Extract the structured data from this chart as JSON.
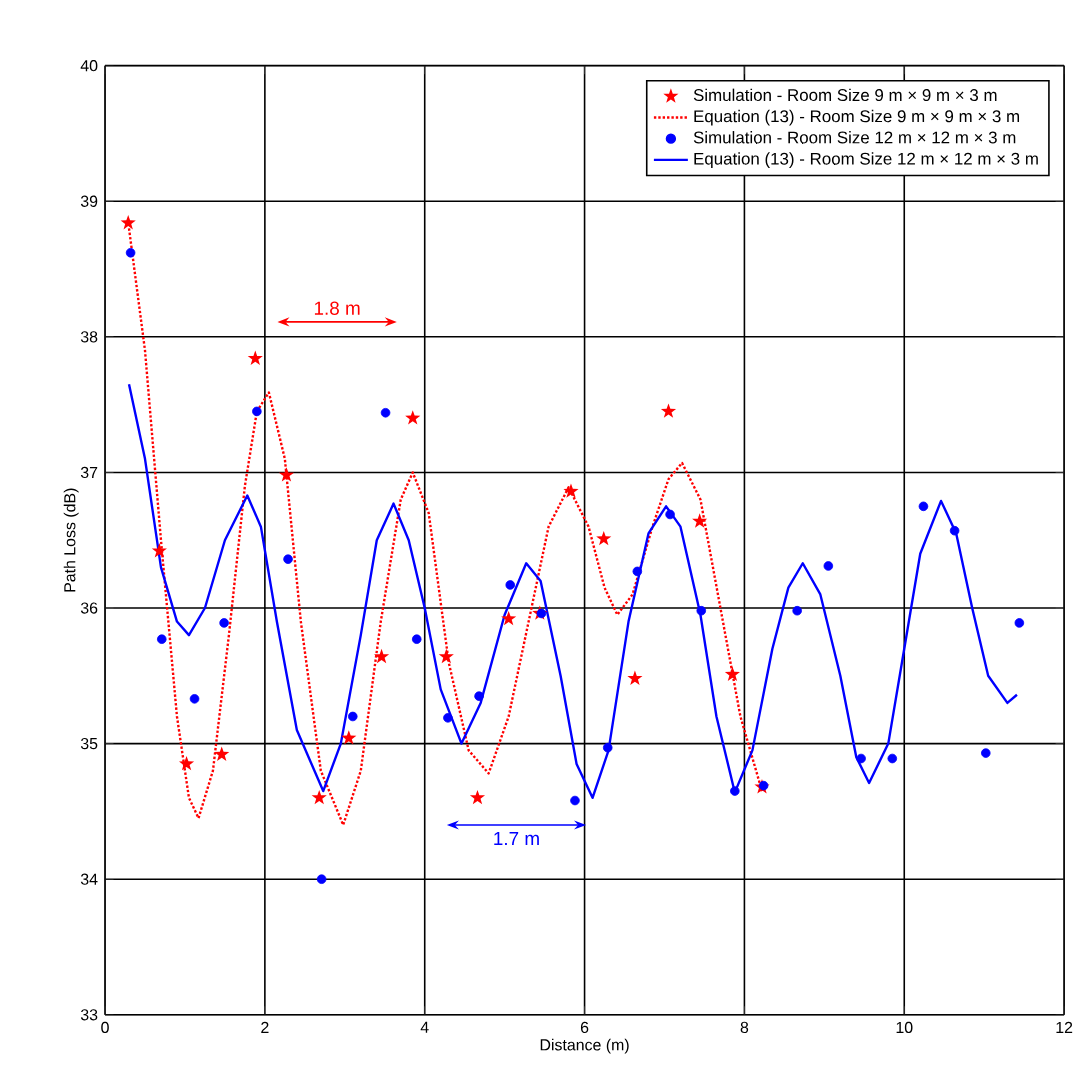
{
  "chart_data": {
    "type": "scatter",
    "xlabel": "Distance (m)",
    "ylabel": "Path Loss (dB)",
    "xlim": [
      0,
      12
    ],
    "ylim": [
      33,
      40
    ],
    "xticks": [
      0,
      2,
      4,
      6,
      8,
      10,
      12
    ],
    "yticks": [
      33,
      34,
      35,
      36,
      37,
      38,
      39,
      40
    ],
    "grid": true,
    "legend": "top right",
    "annotations": [
      "1.8 m",
      "1.7 m"
    ],
    "series": [
      {
        "name": "Simulation - Room Size 9 m × 9 m × 3 m",
        "marker": "star",
        "color": "#ff0000",
        "x": [
          0.29,
          0.68,
          1.02,
          1.46,
          1.88,
          2.27,
          2.68,
          3.05,
          3.46,
          3.85,
          4.27,
          4.66,
          5.05,
          5.44,
          5.83,
          6.24,
          6.63,
          7.05,
          7.44,
          7.85,
          8.22
        ],
        "values": [
          38.84,
          36.42,
          34.85,
          34.92,
          37.84,
          36.98,
          34.6,
          35.04,
          35.64,
          37.4,
          35.64,
          34.6,
          35.92,
          35.96,
          36.86,
          36.51,
          35.48,
          37.45,
          36.64,
          35.51,
          34.68
        ]
      },
      {
        "name": "Equation (13) - Room Size 9 m × 9 m × 3 m",
        "type": "line",
        "marker": "none",
        "line_style": "dotted",
        "color": "#ff0000",
        "x": [
          0.3,
          0.5,
          0.7,
          0.9,
          1.05,
          1.17,
          1.35,
          1.55,
          1.75,
          1.9,
          2.05,
          2.25,
          2.45,
          2.7,
          2.98,
          3.2,
          3.45,
          3.7,
          3.85,
          4.05,
          4.3,
          4.55,
          4.8,
          5.05,
          5.3,
          5.55,
          5.8,
          6.05,
          6.25,
          6.41,
          6.6,
          6.85,
          7.05,
          7.22,
          7.45,
          7.7,
          7.95,
          8.22
        ],
        "values": [
          38.8,
          37.9,
          36.5,
          35.2,
          34.6,
          34.45,
          34.8,
          35.8,
          36.9,
          37.45,
          37.59,
          37.1,
          35.9,
          34.8,
          34.4,
          34.8,
          35.9,
          36.8,
          37.0,
          36.7,
          35.6,
          34.95,
          34.78,
          35.2,
          35.9,
          36.6,
          36.89,
          36.6,
          36.15,
          35.95,
          36.1,
          36.6,
          36.95,
          37.07,
          36.8,
          36.0,
          35.2,
          34.65
        ]
      },
      {
        "name": "Simulation - Room Size 12 m × 12 m × 3 m",
        "marker": "circle",
        "color": "#0000ff",
        "x": [
          0.32,
          0.71,
          1.12,
          1.49,
          1.9,
          2.29,
          2.71,
          3.1,
          3.51,
          3.9,
          4.29,
          4.68,
          5.07,
          5.46,
          5.88,
          6.29,
          6.66,
          7.07,
          7.46,
          7.88,
          8.24,
          8.66,
          9.05,
          9.46,
          9.85,
          10.24,
          10.63,
          11.02,
          11.44
        ],
        "values": [
          38.62,
          35.77,
          35.33,
          35.89,
          37.45,
          36.36,
          34.0,
          35.2,
          37.44,
          35.77,
          35.19,
          35.35,
          36.17,
          35.96,
          34.58,
          34.97,
          36.27,
          36.69,
          35.98,
          34.65,
          34.69,
          35.98,
          36.31,
          34.89,
          34.89,
          36.75,
          36.57,
          34.93,
          35.89
        ]
      },
      {
        "name": "Equation (13) - Room Size 12 m × 12 m × 3 m",
        "type": "line",
        "marker": "none",
        "line_style": "solid",
        "color": "#0000ff",
        "x": [
          0.3,
          0.5,
          0.7,
          0.9,
          1.05,
          1.25,
          1.5,
          1.78,
          1.95,
          2.15,
          2.4,
          2.73,
          2.95,
          3.2,
          3.4,
          3.61,
          3.8,
          4.0,
          4.2,
          4.46,
          4.7,
          5.0,
          5.27,
          5.45,
          5.7,
          5.9,
          6.1,
          6.3,
          6.55,
          6.8,
          7.02,
          7.2,
          7.45,
          7.65,
          7.88,
          8.1,
          8.35,
          8.55,
          8.73,
          8.95,
          9.2,
          9.4,
          9.56,
          9.8,
          10.0,
          10.2,
          10.46,
          10.65,
          10.85,
          11.05,
          11.29,
          11.41
        ],
        "values": [
          37.65,
          37.1,
          36.3,
          35.9,
          35.8,
          36.0,
          36.5,
          36.83,
          36.6,
          35.9,
          35.1,
          34.65,
          35.0,
          35.8,
          36.5,
          36.77,
          36.5,
          36.0,
          35.4,
          35.0,
          35.3,
          35.95,
          36.33,
          36.2,
          35.5,
          34.85,
          34.6,
          34.95,
          35.9,
          36.55,
          36.75,
          36.6,
          35.95,
          35.2,
          34.64,
          34.95,
          35.7,
          36.15,
          36.33,
          36.1,
          35.5,
          34.9,
          34.71,
          35.0,
          35.7,
          36.4,
          36.79,
          36.55,
          36.0,
          35.5,
          35.3,
          35.36
        ]
      }
    ]
  }
}
